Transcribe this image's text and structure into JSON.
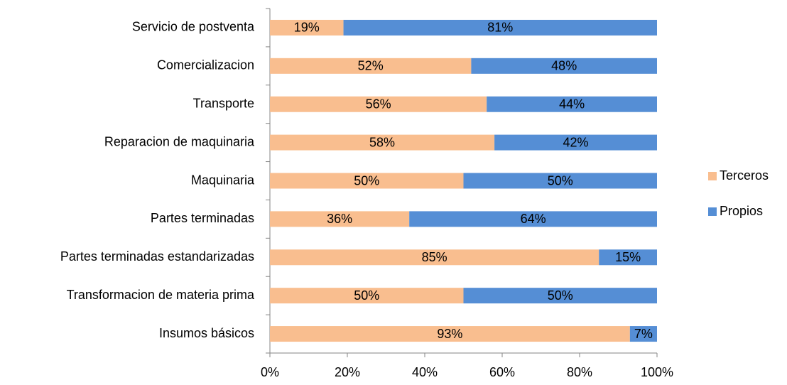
{
  "chart_data": {
    "type": "stacked_bar_horizontal",
    "categories": [
      "Servicio de postventa",
      "Comercializacion",
      "Transporte",
      "Reparacion de maquinaria",
      "Maquinaria",
      "Partes terminadas",
      "Partes terminadas estandarizadas",
      "Transformacion de materia prima",
      "Insumos básicos"
    ],
    "series": [
      {
        "name": "Terceros",
        "color": "#f9be8f",
        "values": [
          19,
          52,
          56,
          58,
          50,
          36,
          85,
          50,
          93
        ],
        "value_labels": [
          "19%",
          "52%",
          "56%",
          "58%",
          "50%",
          "36%",
          "85%",
          "50%",
          "93%"
        ]
      },
      {
        "name": "Propios",
        "color": "#558ed5",
        "values": [
          81,
          48,
          44,
          42,
          50,
          64,
          15,
          50,
          7
        ],
        "value_labels": [
          "81%",
          "48%",
          "44%",
          "42%",
          "50%",
          "64%",
          "15%",
          "50%",
          "7%"
        ]
      }
    ],
    "xlim": [
      0,
      100
    ],
    "xticks": [
      {
        "value": 0,
        "label": "0%"
      },
      {
        "value": 20,
        "label": "20%"
      },
      {
        "value": 40,
        "label": "40%"
      },
      {
        "value": 60,
        "label": "60%"
      },
      {
        "value": 80,
        "label": "80%"
      },
      {
        "value": 100,
        "label": "100%"
      }
    ],
    "legend": "right"
  }
}
